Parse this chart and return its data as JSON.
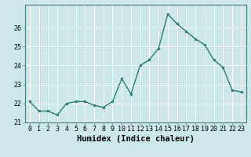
{
  "x": [
    0,
    1,
    2,
    3,
    4,
    5,
    6,
    7,
    8,
    9,
    10,
    11,
    12,
    13,
    14,
    15,
    16,
    17,
    18,
    19,
    20,
    21,
    22,
    23
  ],
  "y": [
    22.1,
    21.6,
    21.6,
    21.4,
    22.0,
    22.1,
    22.1,
    21.9,
    21.8,
    22.1,
    23.3,
    22.5,
    24.0,
    24.3,
    24.9,
    26.7,
    26.2,
    25.8,
    25.4,
    25.1,
    24.3,
    23.9,
    22.7,
    22.6
  ],
  "line_color": "#2e7d6e",
  "marker": "o",
  "marker_size": 2.0,
  "bg_color": "#cce8e8",
  "grid_color": "#ffffff",
  "xlabel": "Humidex (Indice chaleur)",
  "xlim": [
    -0.5,
    23.5
  ],
  "ylim": [
    21.0,
    27.2
  ],
  "yticks": [
    21,
    22,
    23,
    24,
    25,
    26
  ],
  "xticks": [
    0,
    1,
    2,
    3,
    4,
    5,
    6,
    7,
    8,
    9,
    10,
    11,
    12,
    13,
    14,
    15,
    16,
    17,
    18,
    19,
    20,
    21,
    22,
    23
  ],
  "tick_fontsize": 6,
  "xlabel_fontsize": 7.5,
  "linewidth": 1.0
}
